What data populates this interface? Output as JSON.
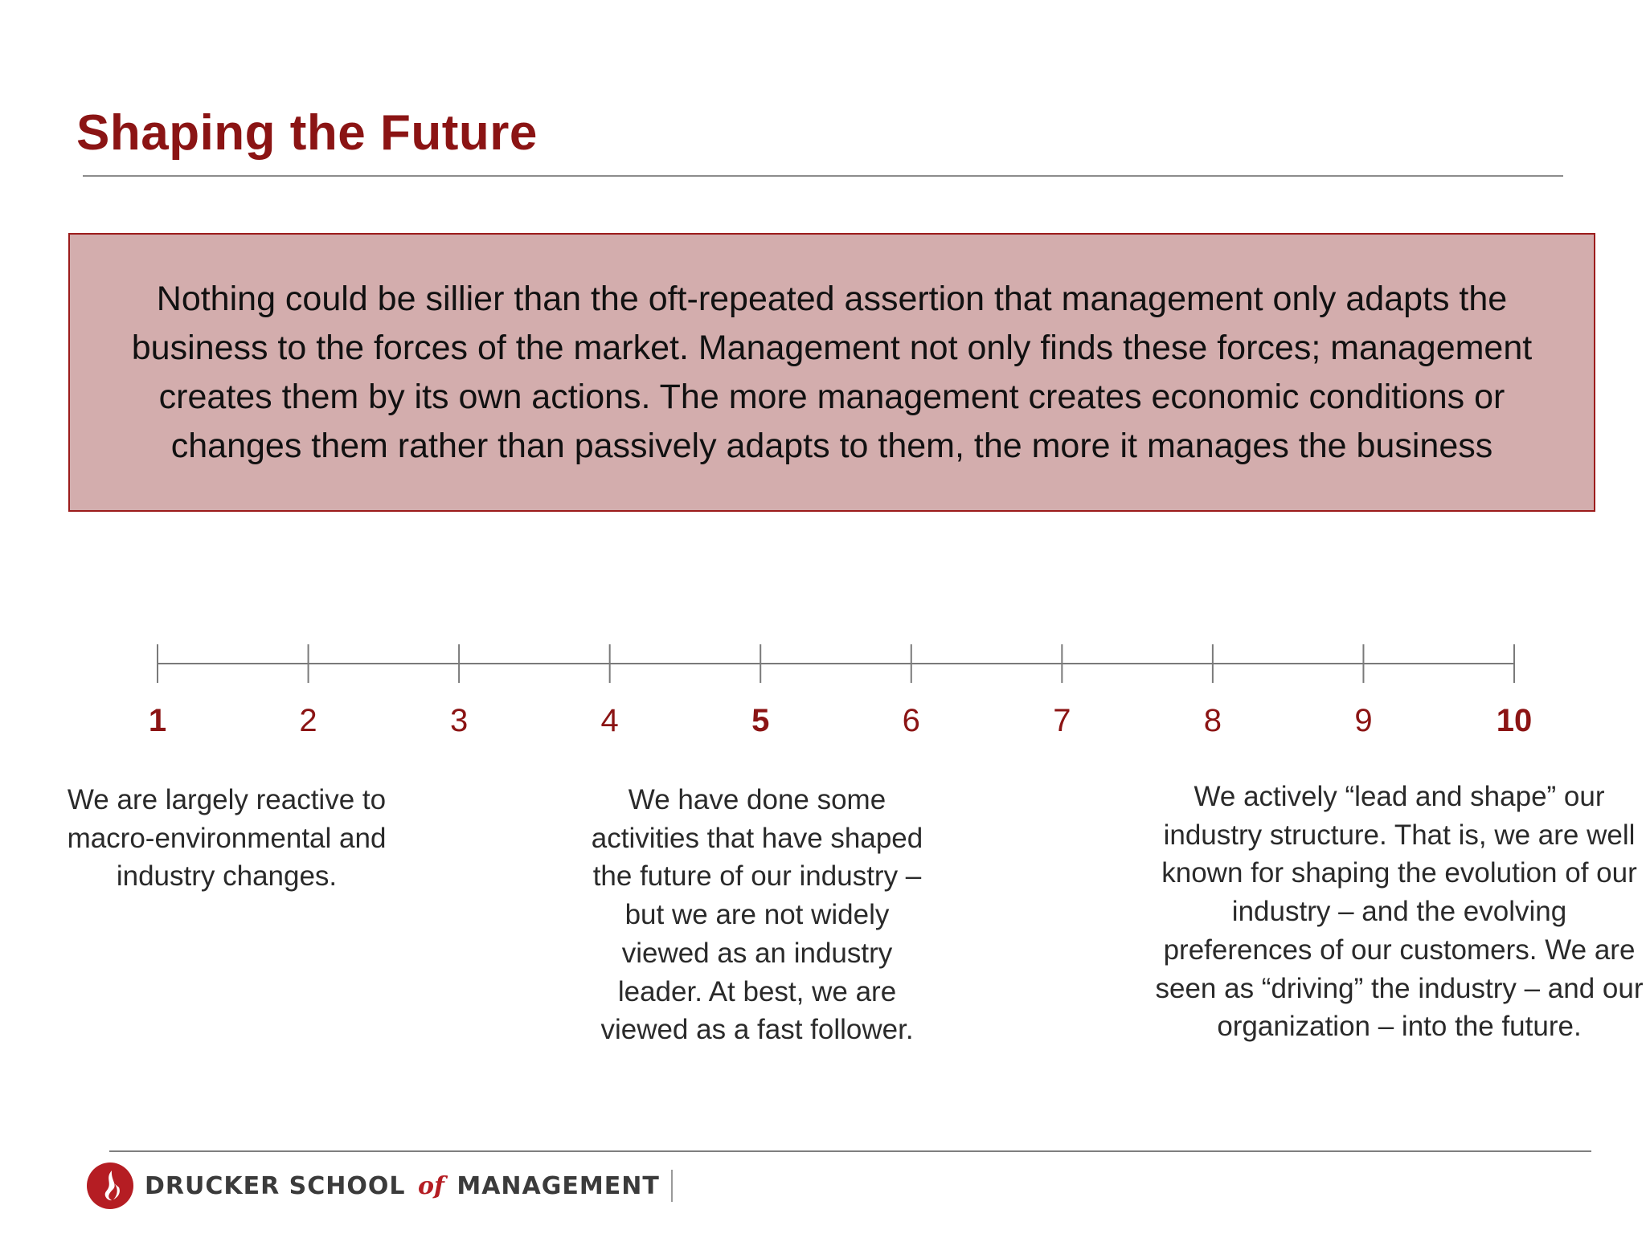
{
  "slide": {
    "title": "Shaping the Future",
    "quote": "Nothing could be sillier than the oft-repeated assertion that management only adapts the business to the forces of the market. Management not only finds these forces; management creates them by its own actions. The more management creates economic conditions or changes them rather than passively adapts to them, the more it manages the business"
  },
  "scale": {
    "ticks": [
      {
        "label": "1",
        "bold": true
      },
      {
        "label": "2",
        "bold": false
      },
      {
        "label": "3",
        "bold": false
      },
      {
        "label": "4",
        "bold": false
      },
      {
        "label": "5",
        "bold": true
      },
      {
        "label": "6",
        "bold": false
      },
      {
        "label": "7",
        "bold": false
      },
      {
        "label": "8",
        "bold": false
      },
      {
        "label": "9",
        "bold": false
      },
      {
        "label": "10",
        "bold": true
      }
    ],
    "descriptions": {
      "low": "We are largely reactive to macro-environmental and industry changes.",
      "mid": "We have done some activities that have shaped the future of our industry – but we are not widely viewed as an industry leader. At best, we are viewed as a fast follower.",
      "high": "We actively “lead and shape” our industry structure.  That is, we are well known for shaping the evolution of our industry – and the evolving preferences of our customers. We are seen as “driving” the industry – and our organization – into the future."
    }
  },
  "footer": {
    "logo_before": "DRUCKER SCHOOL",
    "logo_of": "of",
    "logo_after": "MANAGEMENT",
    "logo_icon": "flame-icon"
  },
  "colors": {
    "accent": "#8b1414",
    "quote_bg": "#d3adad",
    "quote_border": "#9c1c1c",
    "logo_red": "#b51d23"
  }
}
